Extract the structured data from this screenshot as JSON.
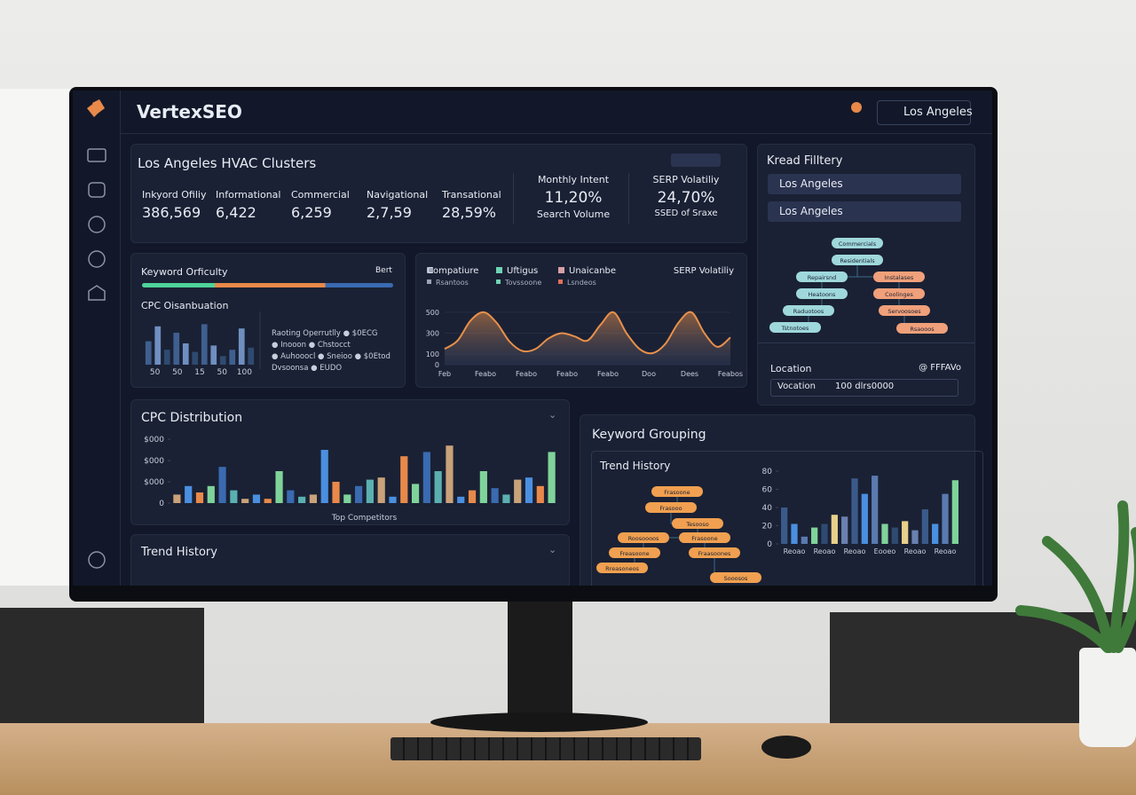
{
  "header": {
    "brand": "VertexSEO",
    "location": "Los Angeles"
  },
  "clusters": {
    "title": "Los Angeles HVAC Clusters",
    "metrics": [
      {
        "label": "Inkyord Ofiliy",
        "value": "386,569"
      },
      {
        "label": "Informational",
        "value": "6,422"
      },
      {
        "label": "Commercial",
        "value": "6,259"
      },
      {
        "label": "Navigational",
        "value": "2,7,59"
      },
      {
        "label": "Transational",
        "value": "28,59%"
      }
    ],
    "monthly": {
      "label": "Monthly Intent",
      "value": "11,20%",
      "sub": "Search Volume"
    },
    "serp": {
      "label": "SERP Volatiliy",
      "value": "24,70%",
      "sub": "SSED of Sraxe"
    }
  },
  "filter": {
    "title": "Kread Filltery",
    "options": [
      "Los Angeles",
      "Los Angeles"
    ],
    "tree": [
      {
        "label": "Commercials",
        "kind": "teal"
      },
      {
        "label": "Residentials",
        "kind": "teal"
      },
      {
        "label": "Repairsnd",
        "kind": "teal"
      },
      {
        "label": "Instalases",
        "kind": "orange"
      },
      {
        "label": "Heatoons",
        "kind": "teal"
      },
      {
        "label": "Coolinges",
        "kind": "orange"
      },
      {
        "label": "Raduotoos",
        "kind": "teal"
      },
      {
        "label": "Servoosoes",
        "kind": "orange"
      },
      {
        "label": "Tstnotoes",
        "kind": "teal"
      },
      {
        "label": "Rsaooos",
        "kind": "orange"
      }
    ],
    "location_label": "Location",
    "location_note": "@ FFFAVo",
    "select_label": "Vocation",
    "select_value": "100 dlrs0000"
  },
  "difficulty": {
    "title": "Keyword Orficulty",
    "legend": "Bert",
    "subtitle": "CPC Oisanbuation",
    "notes": [
      "Raoting Operrutlly  ● $0ECG",
      "● Inooon ● Chstocct",
      "● Auhooocl ● Sneioo ● $0Etod",
      "Dvsoonsa ● EUDO"
    ],
    "chart": {
      "type": "bar",
      "values": [
        0.55,
        0.9,
        0.35,
        0.75,
        0.5,
        0.3,
        0.95,
        0.45,
        0.2,
        0.35,
        0.85,
        0.4
      ],
      "ylim": [
        0,
        1
      ],
      "palette": [
        "#3f5f8f",
        "#6f8fc0",
        "#2f4a70"
      ],
      "xlabels": [
        "50",
        "50",
        "15",
        "50",
        "100"
      ]
    }
  },
  "competitors": {
    "legend": [
      {
        "name": "Compatiure",
        "color": "#9aa3b5"
      },
      {
        "name": "Uftigus",
        "color": "#6fd3b4"
      },
      {
        "name": "Unaicanbe",
        "color": "#d8a0a8"
      }
    ],
    "legend2": [
      {
        "name": "Rsantoos",
        "color": "#9aa3b5"
      },
      {
        "name": "Tovssoone",
        "color": "#6fd3b4"
      },
      {
        "name": "Lsndeos",
        "color": "#e0705a"
      }
    ],
    "title": "SERP Volatiliy",
    "chart": {
      "type": "line",
      "color": "#e8904a",
      "x": [
        0,
        0.318,
        0.636,
        0.955,
        1.273,
        1.591,
        1.909,
        2.227,
        2.545,
        2.864,
        3.182,
        3.5,
        3.818,
        4.136,
        4.455,
        4.773,
        5.091,
        5.409,
        5.727,
        6.045,
        6.364,
        6.682,
        7
      ],
      "values": [
        150,
        230,
        420,
        500,
        400,
        220,
        130,
        150,
        250,
        300,
        270,
        230,
        380,
        500,
        300,
        150,
        110,
        200,
        400,
        500,
        300,
        170,
        260
      ],
      "xlim": [
        0,
        7
      ],
      "ylim": [
        0,
        550
      ],
      "yticks": [
        0,
        100,
        300,
        500
      ],
      "xticks": [
        {
          "value": 0,
          "label": "Feb"
        },
        {
          "value": 1,
          "label": "Feabo"
        },
        {
          "value": 2,
          "label": "Feabo"
        },
        {
          "value": 3,
          "label": "Feabo"
        },
        {
          "value": 4,
          "label": "Feabo"
        },
        {
          "value": 5,
          "label": "Doo"
        },
        {
          "value": 6,
          "label": "Dees"
        },
        {
          "value": 7,
          "label": "Feabos"
        }
      ]
    }
  },
  "cpc": {
    "title": "CPC Distribution",
    "chart": {
      "type": "bar",
      "x_label": "Top Competitors",
      "ylim": [
        0,
        3.3
      ],
      "yticks": [
        0,
        {
          "value": 1,
          "label": "$000"
        },
        {
          "value": 2,
          "label": "$000"
        },
        {
          "value": 3,
          "label": "$000"
        }
      ],
      "values": [
        0.4,
        0.8,
        0.5,
        0.8,
        1.7,
        0.6,
        0.2,
        0.4,
        0.2,
        1.5,
        0.6,
        0.3,
        0.4,
        2.5,
        1.0,
        0.4,
        0.8,
        1.1,
        1.2,
        0.3,
        2.2,
        0.9,
        2.4,
        1.5,
        2.7,
        0.3,
        0.6,
        1.5,
        0.7,
        0.4,
        1.1,
        1.2,
        0.8,
        2.4
      ],
      "palette": [
        "#c9a27a",
        "#4a8fe0",
        "#e8894a",
        "#7fd39a",
        "#3a6ab0",
        "#5ab0b0"
      ]
    }
  },
  "trend": {
    "title": "Trend History"
  },
  "grouping": {
    "title": "Keyword Grouping",
    "subtitle": "Trend History",
    "tree": [
      {
        "label": "Frasoone"
      },
      {
        "label": "Frasooo"
      },
      {
        "label": "Tesooso"
      },
      {
        "label": "Roosoooos"
      },
      {
        "label": "Frasoone"
      },
      {
        "label": "Freasoone"
      },
      {
        "label": "Fraasoones"
      },
      {
        "label": "Rreasoneos"
      },
      {
        "label": "Sooosos"
      }
    ],
    "chart": {
      "type": "bar",
      "ylim": [
        0,
        80
      ],
      "yticks": [
        0,
        20,
        40,
        60,
        80
      ],
      "values": [
        40,
        22,
        8,
        18,
        22,
        32,
        30,
        72,
        55,
        75,
        22,
        18,
        25,
        15,
        38,
        22,
        55,
        70
      ],
      "palette": [
        "#3a5a8a",
        "#4a8fe0",
        "#5a7ab0",
        "#7fd39a",
        "#2f4a70",
        "#e8d08a",
        "#6a80b0"
      ],
      "xlabels": [
        "Reoao",
        "Reoao",
        "Reoao",
        "Eooeo",
        "Reoao",
        "Reoao"
      ]
    }
  }
}
